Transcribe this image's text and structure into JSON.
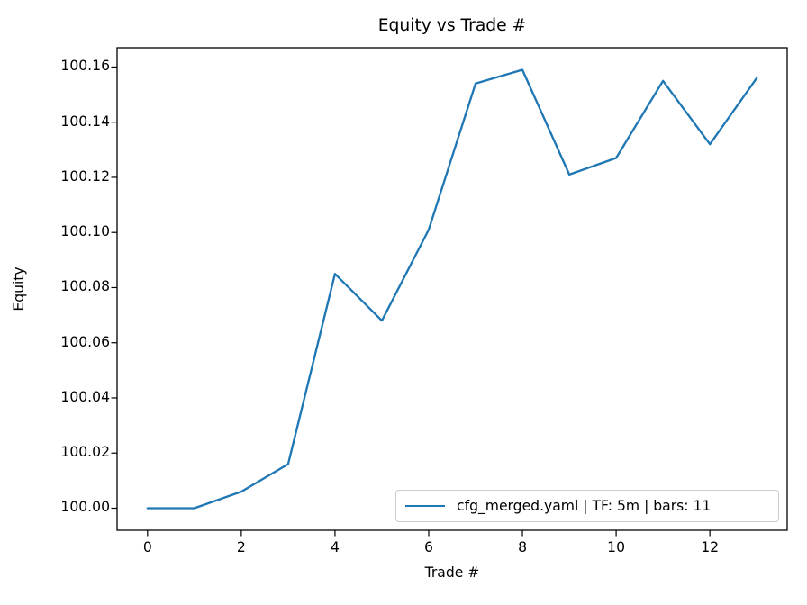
{
  "chart_data": {
    "type": "line",
    "title": "Equity vs Trade #",
    "xlabel": "Trade #",
    "ylabel": "Equity",
    "x": [
      0,
      1,
      2,
      3,
      4,
      5,
      6,
      7,
      8,
      9,
      10,
      11,
      12,
      13
    ],
    "series": [
      {
        "name": "cfg_merged.yaml | TF: 5m | bars: 11",
        "color": "#1f77b4",
        "values": [
          100.0,
          100.0,
          100.006,
          100.016,
          100.085,
          100.068,
          100.101,
          100.154,
          100.159,
          100.121,
          100.127,
          100.155,
          100.132,
          100.156
        ]
      }
    ],
    "xlim": [
      -0.65,
      13.65
    ],
    "ylim": [
      99.992,
      100.167
    ],
    "x_ticks": [
      0,
      2,
      4,
      6,
      8,
      10,
      12
    ],
    "x_tick_labels": [
      "0",
      "2",
      "4",
      "6",
      "8",
      "10",
      "12"
    ],
    "y_ticks": [
      100.0,
      100.02,
      100.04,
      100.06,
      100.08,
      100.1,
      100.12,
      100.14,
      100.16
    ],
    "y_tick_labels": [
      "100.00",
      "100.02",
      "100.04",
      "100.06",
      "100.08",
      "100.10",
      "100.12",
      "100.14",
      "100.16"
    ],
    "grid": false,
    "legend_position": "lower right",
    "axis_color": "#000000",
    "background_color": "#ffffff"
  },
  "legend": {
    "label": "cfg_merged.yaml | TF: 5m | bars: 11"
  }
}
